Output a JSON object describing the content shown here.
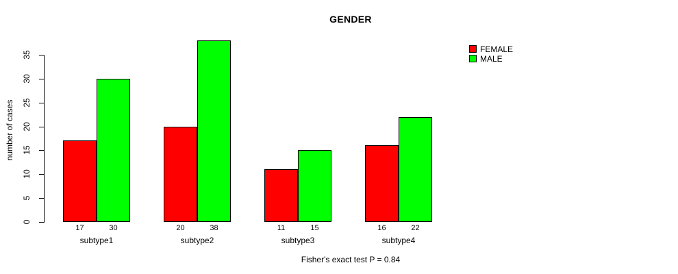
{
  "chart_data": {
    "type": "bar",
    "title": "GENDER",
    "categories": [
      "subtype1",
      "subtype2",
      "subtype3",
      "subtype4"
    ],
    "series": [
      {
        "name": "FEMALE",
        "color": "#ff0000",
        "values": [
          17,
          20,
          11,
          16
        ]
      },
      {
        "name": "MALE",
        "color": "#00ff00",
        "values": [
          30,
          38,
          15,
          22
        ]
      }
    ],
    "xlabel": "",
    "ylabel": "number of cases",
    "yticks": [
      0,
      5,
      10,
      15,
      20,
      25,
      30,
      35
    ],
    "ylim": [
      0,
      38
    ],
    "grid": false,
    "value_labels_shown": true,
    "legend_position": "right",
    "annotation": "Fisher's exact test P = 0.84"
  },
  "colors": {
    "background": "#ffffff",
    "axis": "#000000",
    "text": "#000000",
    "female": "#ff0000",
    "male": "#00ff00"
  }
}
